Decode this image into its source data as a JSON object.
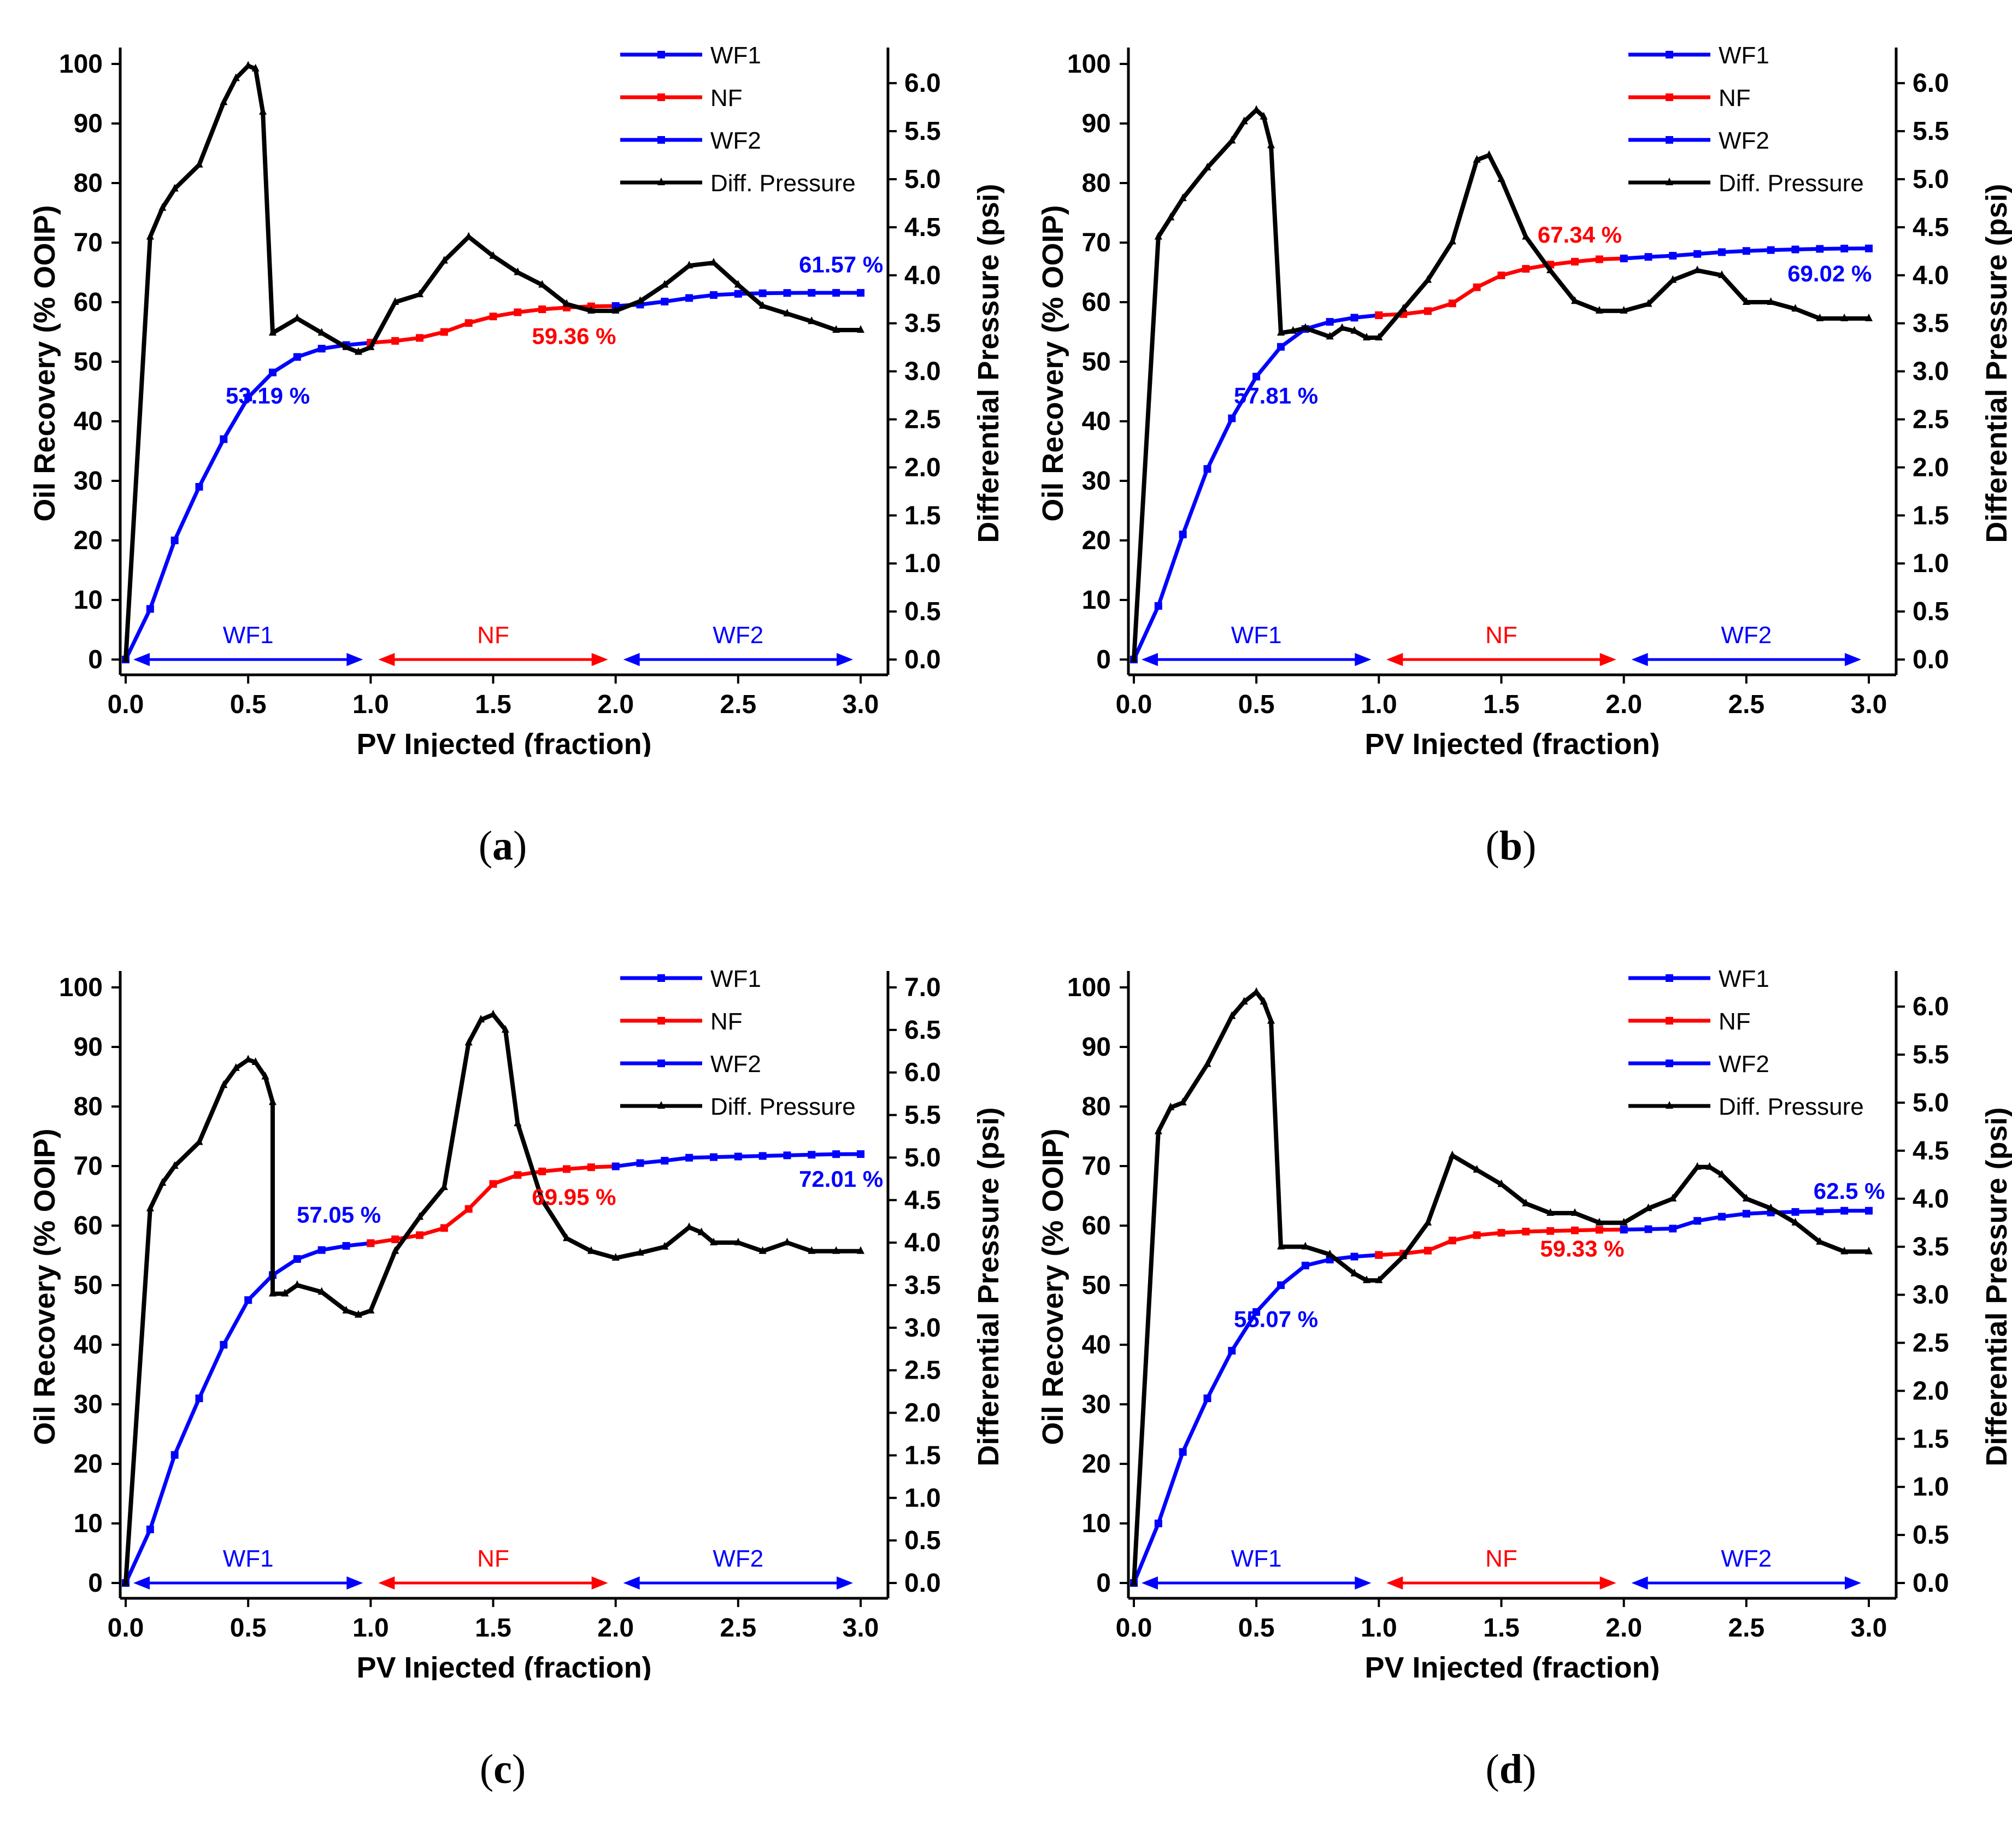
{
  "figure": {
    "captions": [
      "(a)",
      "(b)",
      "(c)",
      "(d)"
    ],
    "caption_letters": [
      "a",
      "b",
      "c",
      "d"
    ]
  },
  "colors": {
    "wf": "#0000ff",
    "nf": "#ff0000",
    "dp": "#000000",
    "axis": "#000000"
  },
  "chart_data": [
    {
      "type": "line",
      "panel": "a",
      "xlabel": "PV Injected (fraction)",
      "ylabel": "Oil Recovery (% OOIP)",
      "y2label": "Differential Pressure (psi)",
      "xlim": [
        0,
        3.0
      ],
      "xticks": [
        "0.0",
        "0.5",
        "1.0",
        "1.5",
        "2.0",
        "2.5",
        "3.0"
      ],
      "ylim": [
        0,
        100
      ],
      "yticks": [
        "0",
        "10",
        "20",
        "30",
        "40",
        "50",
        "60",
        "70",
        "80",
        "90",
        "100"
      ],
      "y2lim": [
        0,
        6.2
      ],
      "y2ticks": [
        "0.0",
        "0.5",
        "1.0",
        "1.5",
        "2.0",
        "2.5",
        "3.0",
        "3.5",
        "4.0",
        "4.5",
        "5.0",
        "5.5",
        "6.0"
      ],
      "legend": [
        "WF1",
        "NF",
        "WF2",
        "Diff. Pressure"
      ],
      "stage_labels": [
        "WF1",
        "NF",
        "WF2"
      ],
      "annotations": [
        {
          "text": "53.19 %",
          "x": 0.58,
          "y": 43,
          "color": "blue"
        },
        {
          "text": "59.36 %",
          "x": 1.83,
          "y": 53,
          "color": "red"
        },
        {
          "text": "61.57 %",
          "x": 2.92,
          "y": 65,
          "color": "blue"
        }
      ],
      "series": [
        {
          "name": "WF1",
          "x": [
            0,
            0.1,
            0.2,
            0.3,
            0.4,
            0.5,
            0.6,
            0.7,
            0.8,
            0.9,
            1.0
          ],
          "y": [
            0,
            8.5,
            20,
            29,
            37,
            44,
            48.2,
            50.8,
            52.2,
            52.8,
            53.19
          ]
        },
        {
          "name": "NF",
          "x": [
            1.0,
            1.1,
            1.2,
            1.3,
            1.4,
            1.5,
            1.6,
            1.7,
            1.8,
            1.9,
            2.0
          ],
          "y": [
            53.19,
            53.5,
            54,
            55,
            56.5,
            57.6,
            58.3,
            58.8,
            59.1,
            59.3,
            59.36
          ]
        },
        {
          "name": "WF2",
          "x": [
            2.0,
            2.1,
            2.2,
            2.3,
            2.4,
            2.5,
            2.6,
            2.7,
            2.8,
            2.9,
            3.0
          ],
          "y": [
            59.36,
            59.6,
            60.1,
            60.7,
            61.2,
            61.4,
            61.5,
            61.55,
            61.57,
            61.57,
            61.57
          ]
        },
        {
          "name": "Diff. Pressure",
          "axis": "right",
          "x": [
            0,
            0.1,
            0.15,
            0.2,
            0.3,
            0.4,
            0.45,
            0.5,
            0.53,
            0.56,
            0.6,
            0.7,
            0.8,
            0.9,
            0.95,
            1.0,
            1.1,
            1.2,
            1.3,
            1.4,
            1.5,
            1.6,
            1.7,
            1.8,
            1.9,
            2.0,
            2.1,
            2.2,
            2.3,
            2.4,
            2.5,
            2.6,
            2.7,
            2.8,
            2.9,
            3.0
          ],
          "y": [
            0,
            4.4,
            4.7,
            4.9,
            5.15,
            5.8,
            6.05,
            6.18,
            6.15,
            5.7,
            3.4,
            3.55,
            3.4,
            3.25,
            3.2,
            3.25,
            3.72,
            3.8,
            4.15,
            4.4,
            4.2,
            4.03,
            3.9,
            3.7,
            3.63,
            3.63,
            3.73,
            3.9,
            4.1,
            4.13,
            3.9,
            3.68,
            3.6,
            3.52,
            3.43,
            3.43
          ]
        }
      ]
    },
    {
      "type": "line",
      "panel": "b",
      "xlabel": "PV Injected (fraction)",
      "ylabel": "Oil Recovery (% OOIP)",
      "y2label": "Differential Pressure (psi)",
      "xlim": [
        0,
        3.0
      ],
      "xticks": [
        "0.0",
        "0.5",
        "1.0",
        "1.5",
        "2.0",
        "2.5",
        "3.0"
      ],
      "ylim": [
        0,
        100
      ],
      "yticks": [
        "0",
        "10",
        "20",
        "30",
        "40",
        "50",
        "60",
        "70",
        "80",
        "90",
        "100"
      ],
      "y2lim": [
        0,
        6.2
      ],
      "y2ticks": [
        "0.0",
        "0.5",
        "1.0",
        "1.5",
        "2.0",
        "2.5",
        "3.0",
        "3.5",
        "4.0",
        "4.5",
        "5.0",
        "5.5",
        "6.0"
      ],
      "legend": [
        "WF1",
        "NF",
        "WF2",
        "Diff. Pressure"
      ],
      "stage_labels": [
        "WF1",
        "NF",
        "WF2"
      ],
      "annotations": [
        {
          "text": "57.81 %",
          "x": 0.58,
          "y": 43,
          "color": "blue"
        },
        {
          "text": "67.34 %",
          "x": 1.82,
          "y": 70,
          "color": "red"
        },
        {
          "text": "69.02 %",
          "x": 2.84,
          "y": 63.5,
          "color": "blue"
        }
      ],
      "series": [
        {
          "name": "WF1",
          "x": [
            0,
            0.1,
            0.2,
            0.3,
            0.4,
            0.5,
            0.6,
            0.7,
            0.8,
            0.9,
            1.0
          ],
          "y": [
            0,
            9,
            21,
            32,
            40.5,
            47.5,
            52.5,
            55.5,
            56.7,
            57.4,
            57.81
          ]
        },
        {
          "name": "NF",
          "x": [
            1.0,
            1.1,
            1.2,
            1.3,
            1.4,
            1.5,
            1.6,
            1.7,
            1.8,
            1.9,
            2.0
          ],
          "y": [
            57.81,
            58,
            58.5,
            59.8,
            62.5,
            64.5,
            65.6,
            66.3,
            66.8,
            67.2,
            67.34
          ]
        },
        {
          "name": "WF2",
          "x": [
            2.0,
            2.1,
            2.2,
            2.3,
            2.4,
            2.5,
            2.6,
            2.7,
            2.8,
            2.9,
            3.0
          ],
          "y": [
            67.34,
            67.6,
            67.8,
            68.1,
            68.4,
            68.6,
            68.75,
            68.85,
            68.95,
            69.0,
            69.02
          ]
        },
        {
          "name": "Diff. Pressure",
          "axis": "right",
          "x": [
            0,
            0.1,
            0.15,
            0.2,
            0.3,
            0.4,
            0.45,
            0.5,
            0.53,
            0.56,
            0.6,
            0.65,
            0.7,
            0.8,
            0.85,
            0.9,
            0.95,
            1.0,
            1.1,
            1.2,
            1.3,
            1.4,
            1.45,
            1.5,
            1.6,
            1.7,
            1.8,
            1.9,
            2.0,
            2.1,
            2.2,
            2.3,
            2.4,
            2.5,
            2.6,
            2.7,
            2.8,
            2.9,
            3.0
          ],
          "y": [
            0,
            4.4,
            4.6,
            4.8,
            5.12,
            5.4,
            5.6,
            5.72,
            5.65,
            5.35,
            3.4,
            3.42,
            3.45,
            3.36,
            3.45,
            3.42,
            3.35,
            3.35,
            3.65,
            3.95,
            4.35,
            5.2,
            5.25,
            5.0,
            4.4,
            4.05,
            3.73,
            3.63,
            3.63,
            3.7,
            3.95,
            4.05,
            4.0,
            3.72,
            3.72,
            3.65,
            3.55,
            3.55,
            3.55
          ]
        }
      ]
    },
    {
      "type": "line",
      "panel": "c",
      "xlabel": "PV Injected (fraction)",
      "ylabel": "Oil Recovery (% OOIP)",
      "y2label": "Differential Pressure (psi)",
      "xlim": [
        0,
        3.0
      ],
      "xticks": [
        "0.0",
        "0.5",
        "1.0",
        "1.5",
        "2.0",
        "2.5",
        "3.0"
      ],
      "ylim": [
        0,
        100
      ],
      "yticks": [
        "0",
        "10",
        "20",
        "30",
        "40",
        "50",
        "60",
        "70",
        "80",
        "90",
        "100"
      ],
      "y2lim": [
        0,
        7.0
      ],
      "y2ticks": [
        "0.0",
        "0.5",
        "1.0",
        "1.5",
        "2.0",
        "2.5",
        "3.0",
        "3.5",
        "4.0",
        "4.5",
        "5.0",
        "5.5",
        "6.0",
        "6.5",
        "7.0"
      ],
      "legend": [
        "WF1",
        "NF",
        "WF2",
        "Diff. Pressure"
      ],
      "stage_labels": [
        "WF1",
        "NF",
        "WF2"
      ],
      "annotations": [
        {
          "text": "57.05 %",
          "x": 0.87,
          "y": 60.5,
          "color": "blue"
        },
        {
          "text": "69.95 %",
          "x": 1.83,
          "y": 63.5,
          "color": "red"
        },
        {
          "text": "72.01 %",
          "x": 2.92,
          "y": 66.5,
          "color": "blue"
        }
      ],
      "series": [
        {
          "name": "WF1",
          "x": [
            0,
            0.1,
            0.2,
            0.3,
            0.4,
            0.5,
            0.6,
            0.7,
            0.8,
            0.9,
            1.0
          ],
          "y": [
            0,
            9,
            21.5,
            31,
            40,
            47.5,
            51.7,
            54.4,
            55.9,
            56.6,
            57.05
          ]
        },
        {
          "name": "NF",
          "x": [
            1.0,
            1.1,
            1.2,
            1.3,
            1.4,
            1.5,
            1.6,
            1.7,
            1.8,
            1.9,
            2.0
          ],
          "y": [
            57.05,
            57.7,
            58.4,
            59.6,
            62.8,
            67,
            68.5,
            69.1,
            69.5,
            69.8,
            69.95
          ]
        },
        {
          "name": "WF2",
          "x": [
            2.0,
            2.1,
            2.2,
            2.3,
            2.4,
            2.5,
            2.6,
            2.7,
            2.8,
            2.9,
            3.0
          ],
          "y": [
            69.95,
            70.5,
            70.9,
            71.4,
            71.5,
            71.6,
            71.7,
            71.8,
            71.9,
            72.0,
            72.01
          ]
        },
        {
          "name": "Diff. Pressure",
          "axis": "right",
          "x": [
            0,
            0.1,
            0.15,
            0.2,
            0.3,
            0.4,
            0.45,
            0.5,
            0.53,
            0.57,
            0.6,
            0.6,
            0.65,
            0.7,
            0.8,
            0.9,
            0.95,
            1.0,
            1.1,
            1.2,
            1.3,
            1.4,
            1.45,
            1.5,
            1.55,
            1.6,
            1.7,
            1.8,
            1.9,
            2.0,
            2.1,
            2.2,
            2.3,
            2.35,
            2.4,
            2.5,
            2.6,
            2.7,
            2.8,
            2.9,
            3.0
          ],
          "y": [
            0,
            4.4,
            4.7,
            4.9,
            5.18,
            5.85,
            6.05,
            6.15,
            6.12,
            5.95,
            5.65,
            3.4,
            3.4,
            3.5,
            3.42,
            3.2,
            3.15,
            3.2,
            3.9,
            4.3,
            4.65,
            6.35,
            6.62,
            6.68,
            6.5,
            5.4,
            4.5,
            4.05,
            3.9,
            3.82,
            3.88,
            3.95,
            4.18,
            4.12,
            4.0,
            4.0,
            3.9,
            4.0,
            3.9,
            3.9,
            3.9
          ]
        }
      ]
    },
    {
      "type": "line",
      "panel": "d",
      "xlabel": "PV Injected (fraction)",
      "ylabel": "Oil Recovery (% OOIP)",
      "y2label": "Differential Pressure (psi)",
      "xlim": [
        0,
        3.0
      ],
      "xticks": [
        "0.0",
        "0.5",
        "1.0",
        "1.5",
        "2.0",
        "2.5",
        "3.0"
      ],
      "ylim": [
        0,
        100
      ],
      "yticks": [
        "0",
        "10",
        "20",
        "30",
        "40",
        "50",
        "60",
        "70",
        "80",
        "90",
        "100"
      ],
      "y2lim": [
        0,
        6.2
      ],
      "y2ticks": [
        "0.0",
        "0.5",
        "1.0",
        "1.5",
        "2.0",
        "2.5",
        "3.0",
        "3.5",
        "4.0",
        "4.5",
        "5.0",
        "5.5",
        "6.0"
      ],
      "legend": [
        "WF1",
        "NF",
        "WF2",
        "Diff. Pressure"
      ],
      "stage_labels": [
        "WF1",
        "NF",
        "WF2"
      ],
      "annotations": [
        {
          "text": "55.07 %",
          "x": 0.58,
          "y": 43,
          "color": "blue"
        },
        {
          "text": "59.33 %",
          "x": 1.83,
          "y": 54.8,
          "color": "red"
        },
        {
          "text": "62.5 %",
          "x": 2.92,
          "y": 64.5,
          "color": "blue"
        }
      ],
      "series": [
        {
          "name": "WF1",
          "x": [
            0,
            0.1,
            0.2,
            0.3,
            0.4,
            0.5,
            0.6,
            0.7,
            0.8,
            0.9,
            1.0
          ],
          "y": [
            0,
            10,
            22,
            31,
            39,
            45.5,
            50,
            53.3,
            54.3,
            54.8,
            55.07
          ]
        },
        {
          "name": "NF",
          "x": [
            1.0,
            1.1,
            1.2,
            1.3,
            1.4,
            1.5,
            1.6,
            1.7,
            1.8,
            1.9,
            2.0
          ],
          "y": [
            55.07,
            55.3,
            55.8,
            57.5,
            58.4,
            58.8,
            59.0,
            59.1,
            59.2,
            59.3,
            59.33
          ]
        },
        {
          "name": "WF2",
          "x": [
            2.0,
            2.1,
            2.2,
            2.3,
            2.4,
            2.5,
            2.6,
            2.7,
            2.8,
            2.9,
            3.0
          ],
          "y": [
            59.33,
            59.4,
            59.5,
            60.8,
            61.5,
            62.0,
            62.2,
            62.3,
            62.4,
            62.5,
            62.5
          ]
        },
        {
          "name": "Diff. Pressure",
          "axis": "right",
          "x": [
            0,
            0.1,
            0.15,
            0.2,
            0.3,
            0.4,
            0.45,
            0.5,
            0.53,
            0.56,
            0.6,
            0.7,
            0.8,
            0.9,
            0.95,
            1.0,
            1.1,
            1.2,
            1.3,
            1.4,
            1.5,
            1.6,
            1.7,
            1.8,
            1.9,
            2.0,
            2.1,
            2.2,
            2.3,
            2.35,
            2.4,
            2.5,
            2.6,
            2.7,
            2.8,
            2.9,
            3.0
          ],
          "y": [
            0,
            4.7,
            4.95,
            5.0,
            5.4,
            5.9,
            6.05,
            6.15,
            6.05,
            5.85,
            3.5,
            3.5,
            3.42,
            3.22,
            3.15,
            3.15,
            3.4,
            3.75,
            4.45,
            4.3,
            4.15,
            3.95,
            3.85,
            3.85,
            3.75,
            3.75,
            3.9,
            4.0,
            4.33,
            4.33,
            4.25,
            4.0,
            3.9,
            3.75,
            3.55,
            3.45,
            3.45
          ]
        }
      ]
    }
  ]
}
